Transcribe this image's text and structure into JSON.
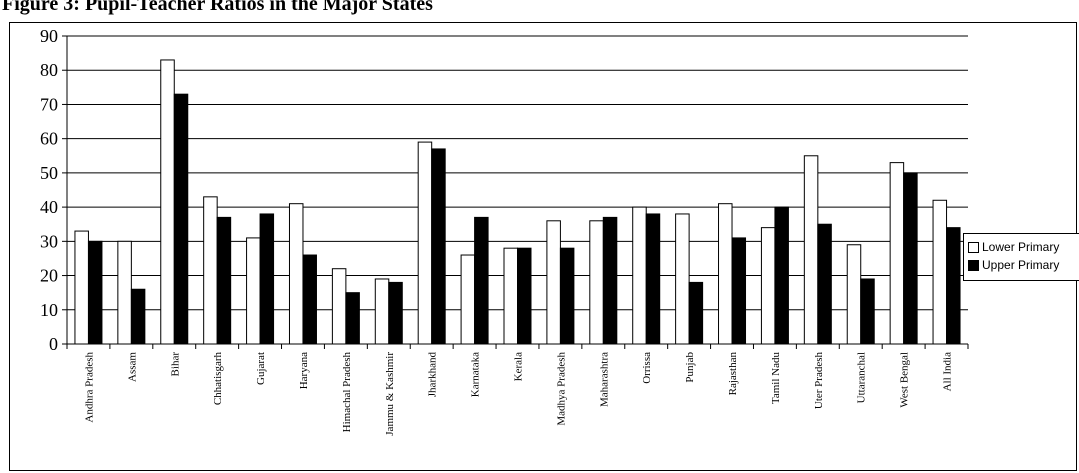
{
  "title": "Figure 3: Pupil-Teacher Ratios in the Major States",
  "colors": {
    "lower": "#ffffff",
    "upper": "#000000",
    "axis": "#000000",
    "grid": "#000000"
  },
  "chart_data": {
    "type": "bar",
    "title": "",
    "xlabel": "",
    "ylabel": "",
    "ylim": [
      0,
      90
    ],
    "yticks": [
      0,
      10,
      20,
      30,
      40,
      50,
      60,
      70,
      80,
      90
    ],
    "grid": true,
    "legend_position": "right",
    "categories": [
      "Andhra Pradesh",
      "Assam",
      "Bihar",
      "Chhatisgarh",
      "Gujarat",
      "Haryana",
      "Himachal Pradesh",
      "Jammu & Kashmir",
      "Jharkhand",
      "Karnataka",
      "Kerala",
      "Madhya Pradesh",
      "Maharashtra",
      "Orrissa",
      "Punjab",
      "Rajasthan",
      "Tamil Nadu",
      "Uter Pradesh",
      "Uttaranchal",
      "West Bengal",
      "All India"
    ],
    "series": [
      {
        "name": "Lower Primary",
        "values": [
          33,
          30,
          83,
          43,
          31,
          41,
          22,
          19,
          59,
          26,
          28,
          36,
          36,
          40,
          38,
          41,
          34,
          55,
          29,
          53,
          42
        ]
      },
      {
        "name": "Upper Primary",
        "values": [
          30,
          16,
          73,
          37,
          38,
          26,
          15,
          18,
          57,
          37,
          28,
          28,
          37,
          38,
          18,
          31,
          40,
          35,
          19,
          50,
          34
        ]
      }
    ]
  },
  "legend": {
    "items": [
      "Lower Primary",
      "Upper Primary"
    ]
  }
}
